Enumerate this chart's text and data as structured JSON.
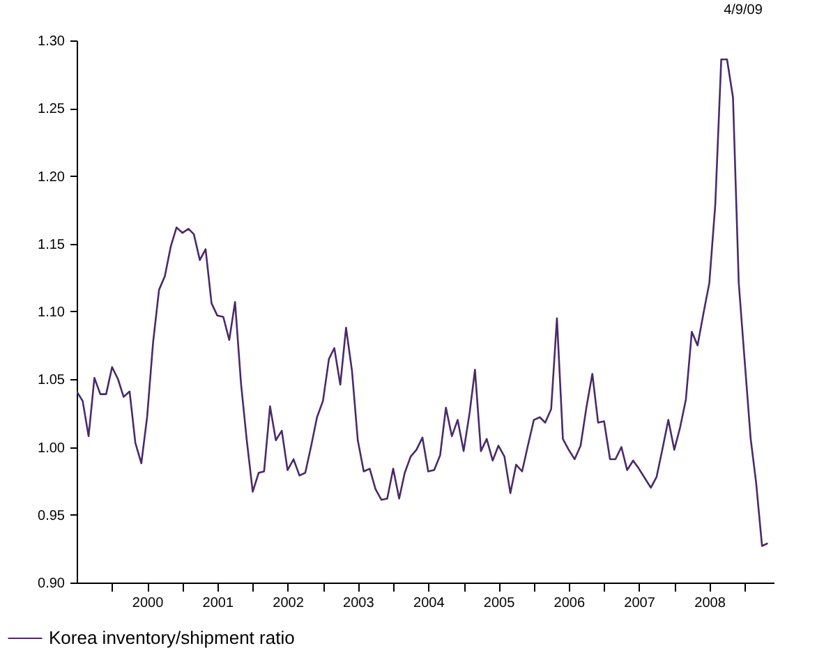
{
  "chart_data": {
    "type": "line",
    "annotations": [
      "4/9/09"
    ],
    "x": [
      "1999-07",
      "1999-08",
      "1999-09",
      "1999-10",
      "1999-11",
      "1999-12",
      "2000-01",
      "2000-02",
      "2000-03",
      "2000-04",
      "2000-05",
      "2000-06",
      "2000-07",
      "2000-08",
      "2000-09",
      "2000-10",
      "2000-11",
      "2000-12",
      "2001-01",
      "2001-02",
      "2001-03",
      "2001-04",
      "2001-05",
      "2001-06",
      "2001-07",
      "2001-08",
      "2001-09",
      "2001-10",
      "2001-11",
      "2001-12",
      "2002-01",
      "2002-02",
      "2002-03",
      "2002-04",
      "2002-05",
      "2002-06",
      "2002-07",
      "2002-08",
      "2002-09",
      "2002-10",
      "2002-11",
      "2002-12",
      "2003-01",
      "2003-02",
      "2003-03",
      "2003-04",
      "2003-05",
      "2003-06",
      "2003-07",
      "2003-08",
      "2003-09",
      "2003-10",
      "2003-11",
      "2003-12",
      "2004-01",
      "2004-02",
      "2004-03",
      "2004-04",
      "2004-05",
      "2004-06",
      "2004-07",
      "2004-08",
      "2004-09",
      "2004-10",
      "2004-11",
      "2004-12",
      "2005-01",
      "2005-02",
      "2005-03",
      "2005-04",
      "2005-05",
      "2005-06",
      "2005-07",
      "2005-08",
      "2005-09",
      "2005-10",
      "2005-11",
      "2005-12",
      "2006-01",
      "2006-02",
      "2006-03",
      "2006-04",
      "2006-05",
      "2006-06",
      "2006-07",
      "2006-08",
      "2006-09",
      "2006-10",
      "2006-11",
      "2006-12",
      "2007-01",
      "2007-02",
      "2007-03",
      "2007-04",
      "2007-05",
      "2007-06",
      "2007-07",
      "2007-08",
      "2007-09",
      "2007-10",
      "2007-11",
      "2007-12",
      "2008-01",
      "2008-02",
      "2008-03",
      "2008-04",
      "2008-05",
      "2008-06",
      "2008-07",
      "2008-08",
      "2008-09",
      "2008-10",
      "2008-11",
      "2008-12",
      "2009-01",
      "2009-02",
      "2009-03",
      "2009-04",
      "2009-05"
    ],
    "xlim": [
      "1999-07-01",
      "2009-06-01"
    ],
    "xticks": [
      {
        "value": "2000-01-01",
        "label": null
      },
      {
        "value": "2000-07-01",
        "label": "2000"
      },
      {
        "value": "2001-01-01",
        "label": null
      },
      {
        "value": "2001-07-01",
        "label": "2001"
      },
      {
        "value": "2002-01-01",
        "label": null
      },
      {
        "value": "2002-07-01",
        "label": "2002"
      },
      {
        "value": "2003-01-01",
        "label": null
      },
      {
        "value": "2003-07-01",
        "label": "2003"
      },
      {
        "value": "2004-01-01",
        "label": null
      },
      {
        "value": "2004-07-01",
        "label": "2004"
      },
      {
        "value": "2005-01-01",
        "label": null
      },
      {
        "value": "2005-07-01",
        "label": "2005"
      },
      {
        "value": "2006-01-01",
        "label": null
      },
      {
        "value": "2006-07-01",
        "label": "2006"
      },
      {
        "value": "2007-01-01",
        "label": null
      },
      {
        "value": "2007-07-01",
        "label": "2007"
      },
      {
        "value": "2008-01-01",
        "label": null
      },
      {
        "value": "2008-07-01",
        "label": "2008"
      },
      {
        "value": "2009-01-01",
        "label": null
      }
    ],
    "ylim": [
      0.9,
      1.3
    ],
    "yticks": [
      {
        "value": 0.9,
        "label": "0.90"
      },
      {
        "value": 0.95,
        "label": "0.95"
      },
      {
        "value": 1.0,
        "label": "1.00"
      },
      {
        "value": 1.05,
        "label": "1.05"
      },
      {
        "value": 1.1,
        "label": "1.10"
      },
      {
        "value": 1.15,
        "label": "1.15"
      },
      {
        "value": 1.2,
        "label": "1.20"
      },
      {
        "value": 1.25,
        "label": "1.25"
      },
      {
        "value": 1.3,
        "label": "1.30"
      }
    ],
    "grid": false,
    "legend": "bottom",
    "series": [
      {
        "name": "Korea inventory/shipment ratio",
        "color": "#4a2a6a",
        "values": [
          1.041,
          1.034,
          1.008,
          1.051,
          1.039,
          1.039,
          1.059,
          1.05,
          1.037,
          1.041,
          1.003,
          0.988,
          1.022,
          1.077,
          1.116,
          1.126,
          1.148,
          1.162,
          1.158,
          1.161,
          1.157,
          1.138,
          1.146,
          1.106,
          1.097,
          1.096,
          1.079,
          1.107,
          1.047,
          1.005,
          0.967,
          0.981,
          0.982,
          1.03,
          1.005,
          1.012,
          0.983,
          0.991,
          0.979,
          0.981,
          1.001,
          1.022,
          1.034,
          1.065,
          1.073,
          1.046,
          1.088,
          1.056,
          1.005,
          0.982,
          0.984,
          0.969,
          0.961,
          0.962,
          0.984,
          0.962,
          0.981,
          0.993,
          0.998,
          1.007,
          0.982,
          0.983,
          0.994,
          1.029,
          1.008,
          1.02,
          0.997,
          1.025,
          1.057,
          0.997,
          1.006,
          0.99,
          1.001,
          0.993,
          0.966,
          0.987,
          0.982,
          1.001,
          1.02,
          1.022,
          1.018,
          1.028,
          1.095,
          1.006,
          0.998,
          0.991,
          1.001,
          1.029,
          1.054,
          1.018,
          1.019,
          0.991,
          0.991,
          1.0,
          0.983,
          0.99,
          0.984,
          0.977,
          0.97,
          0.978,
          0.999,
          1.02,
          0.998,
          1.015,
          1.035,
          1.085,
          1.075,
          1.099,
          1.121,
          1.179,
          1.286,
          1.286,
          1.258,
          1.121,
          1.063,
          1.006,
          0.974,
          0.927,
          0.929
        ]
      }
    ]
  }
}
